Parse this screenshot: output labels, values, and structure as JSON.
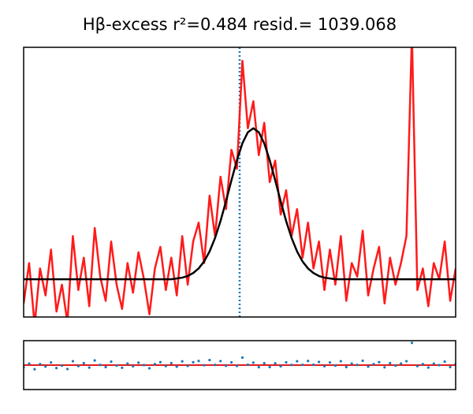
{
  "chart_data": [
    {
      "type": "line",
      "title": "Hβ-excess  r²=0.484 resid.= 1039.068",
      "x": [
        0,
        1,
        2,
        3,
        4,
        5,
        6,
        7,
        8,
        9,
        10,
        11,
        12,
        13,
        14,
        15,
        16,
        17,
        18,
        19,
        20,
        21,
        22,
        23,
        24,
        25,
        26,
        27,
        28,
        29,
        30,
        31,
        32,
        33,
        34,
        35,
        36,
        37,
        38,
        39,
        40,
        41,
        42,
        43,
        44,
        45,
        46,
        47,
        48,
        49,
        50,
        51,
        52,
        53,
        54,
        55,
        56,
        57,
        58,
        59,
        60,
        61,
        62,
        63,
        64,
        65,
        66,
        67,
        68,
        69,
        70,
        71,
        72,
        73,
        74,
        75,
        76,
        77,
        78,
        79
      ],
      "series": [
        {
          "color": "#ff1a1a",
          "values": [
            5,
            20,
            -3,
            18,
            8,
            25,
            2,
            12,
            -2,
            30,
            10,
            22,
            4,
            33,
            15,
            6,
            28,
            12,
            3,
            20,
            9,
            24,
            14,
            1,
            18,
            26,
            10,
            22,
            8,
            30,
            12,
            28,
            35,
            20,
            45,
            30,
            52,
            40,
            62,
            55,
            95,
            70,
            80,
            60,
            72,
            50,
            58,
            38,
            47,
            30,
            40,
            22,
            35,
            18,
            28,
            10,
            25,
            12,
            30,
            6,
            20,
            15,
            32,
            8,
            18,
            26,
            5,
            22,
            12,
            20,
            30,
            105,
            10,
            18,
            4,
            20,
            14,
            28,
            6,
            18
          ]
        },
        {
          "color": "#000000",
          "values": [
            14,
            14,
            14,
            14,
            14,
            14,
            14,
            14,
            14,
            14,
            14,
            14,
            14,
            14,
            14,
            14,
            14,
            14,
            14,
            14,
            14,
            14,
            14,
            14,
            14,
            14,
            14,
            14,
            14.3,
            14.6,
            15.2,
            16.3,
            18,
            20.6,
            24.3,
            29.3,
            35.6,
            42.9,
            50.7,
            58.1,
            64.4,
            68.5,
            70,
            68.5,
            64.4,
            58.1,
            50.7,
            42.9,
            35.6,
            29.3,
            24.3,
            20.6,
            18,
            16.3,
            15.2,
            14.6,
            14.3,
            14,
            14,
            14,
            14,
            14,
            14,
            14,
            14,
            14,
            14,
            14,
            14,
            14,
            14,
            14,
            14,
            14,
            14,
            14,
            14,
            14,
            14,
            14
          ]
        }
      ],
      "xlim": [
        0,
        79
      ],
      "ylim": [
        0,
        100
      ],
      "vline": 39.5,
      "vline_color": "#1f77b4"
    },
    {
      "type": "scatter",
      "x": [
        0,
        1,
        2,
        3,
        4,
        5,
        6,
        7,
        8,
        9,
        10,
        11,
        12,
        13,
        14,
        15,
        16,
        17,
        18,
        19,
        20,
        21,
        22,
        23,
        24,
        25,
        26,
        27,
        28,
        29,
        30,
        31,
        32,
        33,
        34,
        35,
        36,
        37,
        38,
        39,
        40,
        41,
        42,
        43,
        44,
        45,
        46,
        47,
        48,
        49,
        50,
        51,
        52,
        53,
        54,
        55,
        56,
        57,
        58,
        59,
        60,
        61,
        62,
        63,
        64,
        65,
        66,
        67,
        68,
        69,
        70,
        71,
        72,
        73,
        74,
        75,
        76,
        77,
        78,
        79
      ],
      "values": [
        -9,
        6,
        -17,
        4,
        -6,
        11,
        -12,
        -2,
        -16,
        16,
        -4,
        8,
        -10,
        19,
        1,
        -8,
        14,
        -2,
        -11,
        6,
        -5,
        10,
        0,
        -13,
        4,
        12,
        -4,
        8,
        -6.3,
        15.4,
        -3.2,
        11.7,
        17,
        -0.6,
        20.7,
        0.7,
        16.4,
        -2.9,
        11.3,
        -3.1,
        30.6,
        1.5,
        10,
        -8.5,
        7.6,
        -8.1,
        7.3,
        -4.9,
        11.4,
        0.7,
        15.7,
        1.4,
        17,
        1.7,
        12.8,
        -4.6,
        10.7,
        -2,
        16,
        -8,
        6,
        1,
        18,
        -6,
        4,
        12,
        -9,
        8,
        -2,
        6,
        16,
        91,
        -4,
        4,
        -10,
        6,
        0,
        14,
        -8,
        4
      ],
      "color": "#1f77b4",
      "xlim": [
        0,
        79
      ],
      "ylim": [
        -100,
        100
      ],
      "hline": 0,
      "hline_color": "#e31a1c"
    }
  ]
}
